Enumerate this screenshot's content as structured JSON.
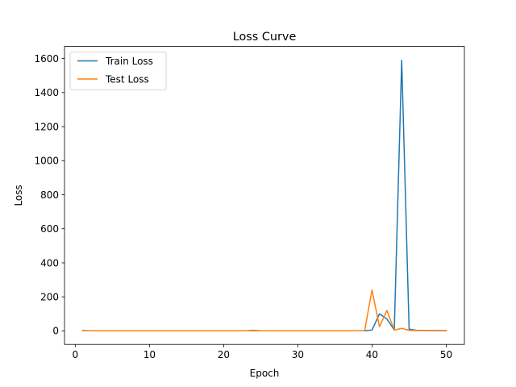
{
  "chart_data": {
    "type": "line",
    "title": "Loss Curve",
    "xlabel": "Epoch",
    "ylabel": "Loss",
    "xlim": [
      -1.45,
      52.45
    ],
    "ylim": [
      -79.5,
      1671
    ],
    "xticks": [
      0,
      10,
      20,
      30,
      40,
      50
    ],
    "yticks": [
      0,
      200,
      400,
      600,
      800,
      1000,
      1200,
      1400,
      1600
    ],
    "grid": false,
    "legend_position": "top-left",
    "x": [
      1,
      2,
      3,
      4,
      5,
      6,
      7,
      8,
      9,
      10,
      11,
      12,
      13,
      14,
      15,
      16,
      17,
      18,
      19,
      20,
      21,
      22,
      23,
      24,
      25,
      26,
      27,
      28,
      29,
      30,
      31,
      32,
      33,
      34,
      35,
      36,
      37,
      38,
      39,
      40,
      41,
      42,
      43,
      44,
      45,
      46,
      47,
      48,
      49,
      50
    ],
    "series": [
      {
        "name": "Train Loss",
        "color": "#1f77b4",
        "values": [
          2,
          1,
          1,
          1,
          1,
          1,
          1,
          1,
          1,
          1,
          1,
          1,
          1,
          1,
          1,
          1,
          1,
          1,
          1,
          1,
          1,
          1,
          1,
          1,
          1,
          1,
          1,
          1,
          1,
          1,
          1,
          1,
          1,
          1,
          1,
          1,
          1,
          1,
          1,
          5,
          100,
          70,
          5,
          1590,
          10,
          3,
          2,
          2,
          1,
          1
        ]
      },
      {
        "name": "Test Loss",
        "color": "#ff7f0e",
        "values": [
          1,
          1,
          1,
          1,
          1,
          1,
          1,
          1,
          1,
          1,
          1,
          1,
          1,
          1,
          1,
          1,
          1,
          1,
          1,
          1,
          1,
          1,
          1,
          3,
          1,
          1,
          1,
          1,
          1,
          1,
          1,
          1,
          1,
          1,
          1,
          1,
          1,
          1,
          1,
          240,
          25,
          120,
          5,
          15,
          3,
          2,
          2,
          3,
          2,
          2
        ]
      }
    ]
  }
}
